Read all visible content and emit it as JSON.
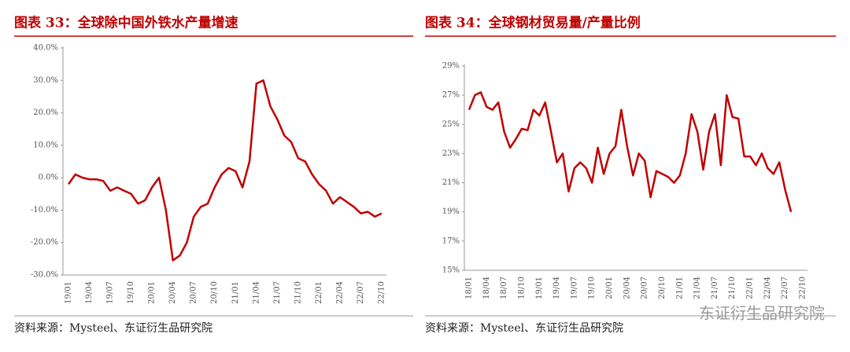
{
  "chart_data": [
    {
      "type": "line",
      "title": "图表 33：全球除中国外铁水产量增速",
      "source": "资料来源：Mysteel、东证衍生品研究院",
      "categories": [
        "19/01",
        null,
        null,
        "19/04",
        null,
        null,
        "19/07",
        null,
        null,
        "19/10",
        null,
        null,
        "20/01",
        null,
        null,
        "20/04",
        null,
        null,
        "20/07",
        null,
        null,
        "20/10",
        null,
        null,
        "21/01",
        null,
        null,
        "21/04",
        null,
        null,
        "21/07",
        null,
        null,
        "21/10",
        null,
        null,
        "22/01",
        null,
        null,
        "22/04",
        null,
        null,
        "22/07",
        null,
        null,
        "22/10"
      ],
      "series": [
        {
          "name": null,
          "color": "#c00000",
          "values": [
            -2,
            1,
            0,
            -0.5,
            -0.5,
            -1,
            -4,
            -3,
            -4,
            -5,
            -8,
            -7,
            -3,
            0,
            -10,
            -25.5,
            -24,
            -20,
            -12,
            -9,
            -8,
            -3,
            1,
            3,
            2,
            -3,
            5,
            29,
            30,
            22,
            18,
            13,
            11,
            6,
            5,
            1,
            -2,
            -4,
            -8,
            -6,
            -7.5,
            -9,
            -11,
            -10.5,
            -12,
            -11
          ]
        }
      ],
      "ylim": [
        -30,
        40
      ],
      "yticks": [
        {
          "value": -30,
          "label": "-30.0%"
        },
        {
          "value": -20,
          "label": "-20.0%"
        },
        {
          "value": -10,
          "label": "-10.0%"
        },
        {
          "value": 0,
          "label": "0.0%"
        },
        {
          "value": 10,
          "label": "10.0%"
        },
        {
          "value": 20,
          "label": "20.0%"
        },
        {
          "value": 30,
          "label": "30.0%"
        },
        {
          "value": 40,
          "label": "40.0%"
        }
      ]
    },
    {
      "type": "line",
      "title": "图表 34：全球钢材贸易量/产量比例",
      "source": "资料来源：Mysteel、东证衍生品研究院",
      "categories": [
        "18/01",
        null,
        null,
        "18/04",
        null,
        null,
        "18/07",
        null,
        null,
        "18/10",
        null,
        null,
        "19/01",
        null,
        null,
        "19/04",
        null,
        null,
        "19/07",
        null,
        null,
        "19/10",
        null,
        null,
        "20/01",
        null,
        null,
        "20/04",
        null,
        null,
        "20/07",
        null,
        null,
        "20/10",
        null,
        null,
        "21/01",
        null,
        null,
        "21/04",
        null,
        null,
        "21/07",
        null,
        null,
        "21/10",
        null,
        null,
        "22/01",
        null,
        null,
        "22/04",
        null,
        null,
        "22/07",
        null,
        null,
        "22/10"
      ],
      "series": [
        {
          "name": null,
          "color": "#c00000",
          "values": [
            26,
            27,
            27.2,
            26.2,
            26,
            26.5,
            24.5,
            23.4,
            24,
            24.7,
            24.6,
            26,
            25.6,
            26.5,
            24.5,
            22.4,
            23,
            20.4,
            22,
            22.4,
            22,
            21,
            23.4,
            21.6,
            23,
            23.5,
            26,
            23.5,
            21.5,
            23,
            22.5,
            20,
            21.8,
            21.6,
            21.4,
            21,
            21.5,
            23,
            25.7,
            24.5,
            21.9,
            24.5,
            25.7,
            22.2,
            27,
            25.5,
            25.4,
            22.8,
            22.8,
            22.2,
            23,
            22,
            21.6,
            22.4,
            20.5,
            19,
            null,
            null
          ]
        }
      ],
      "ylim": [
        15,
        29
      ],
      "yticks": [
        {
          "value": 15,
          "label": "15%"
        },
        {
          "value": 17,
          "label": "17%"
        },
        {
          "value": 19,
          "label": "19%"
        },
        {
          "value": 21,
          "label": "21%"
        },
        {
          "value": 23,
          "label": "23%"
        },
        {
          "value": 25,
          "label": "25%"
        },
        {
          "value": 27,
          "label": "27%"
        },
        {
          "value": 29,
          "label": "29%"
        }
      ]
    }
  ],
  "watermark": "东证衍生品研究院"
}
